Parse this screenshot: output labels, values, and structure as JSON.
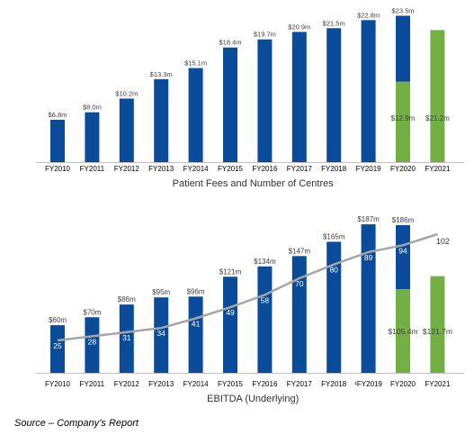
{
  "colors": {
    "blue": "#0a4b9a",
    "green": "#73b043",
    "line": "#a6a6a6",
    "axis": "#bfbfbf",
    "text": "#404040"
  },
  "source_note": "Source – Company’s Report",
  "chart_data": [
    {
      "type": "bar",
      "title": "Patient Fees and Number of Centres",
      "categories": [
        "FY2010",
        "FY2011",
        "FY2012",
        "FY2013",
        "FY2014",
        "FY2015",
        "FY2016",
        "FY2017",
        "FY2018",
        "FY2019",
        "FY2020",
        "FY2021"
      ],
      "values": [
        6.8,
        8.0,
        10.2,
        13.3,
        15.1,
        18.4,
        19.7,
        20.9,
        21.5,
        22.8,
        23.5,
        21.2
      ],
      "value_labels": [
        "$6.8m",
        "$8.0m",
        "$10.2m",
        "$13.3m",
        "$15.1m",
        "$18.4m",
        "$19.7m",
        "$20.9m",
        "$21.5m",
        "$22.8m",
        "$23.5m",
        ""
      ],
      "fy2020_split": {
        "green_value": 12.9,
        "green_label": "$12.9m"
      },
      "fy2021_label": "$21.2m",
      "ylim": [
        0,
        24
      ]
    },
    {
      "type": "bar",
      "title": "EBITDA (Underlying)",
      "categories": [
        "FY2010",
        "FY2011",
        "FY2012",
        "FY2013",
        "FY2014",
        "FY2015",
        "FY2016",
        "FY2017",
        "FY2018",
        "¹FY2019",
        "FY2020",
        "FY2021"
      ],
      "values": [
        60,
        70,
        86,
        95,
        96,
        121,
        134,
        147,
        165,
        187,
        186,
        121.7
      ],
      "value_labels": [
        "$60m",
        "$70m",
        "$86m",
        "$95m",
        "$96m",
        "$121m",
        "$134m",
        "$147m",
        "$165m",
        "$187m",
        "$186m",
        ""
      ],
      "fy2020_split": {
        "green_value": 105.4,
        "green_label": "$105.4m"
      },
      "fy2021_label": "$121.7m",
      "line_series": {
        "values": [
          25,
          28,
          31,
          34,
          41,
          49,
          58,
          70,
          80,
          89,
          94,
          102
        ],
        "labels": [
          "25",
          "28",
          "31",
          "34",
          "41",
          "49",
          "58",
          "70",
          "80",
          "89",
          "94",
          "102"
        ]
      },
      "ylim": [
        0,
        195
      ]
    }
  ]
}
